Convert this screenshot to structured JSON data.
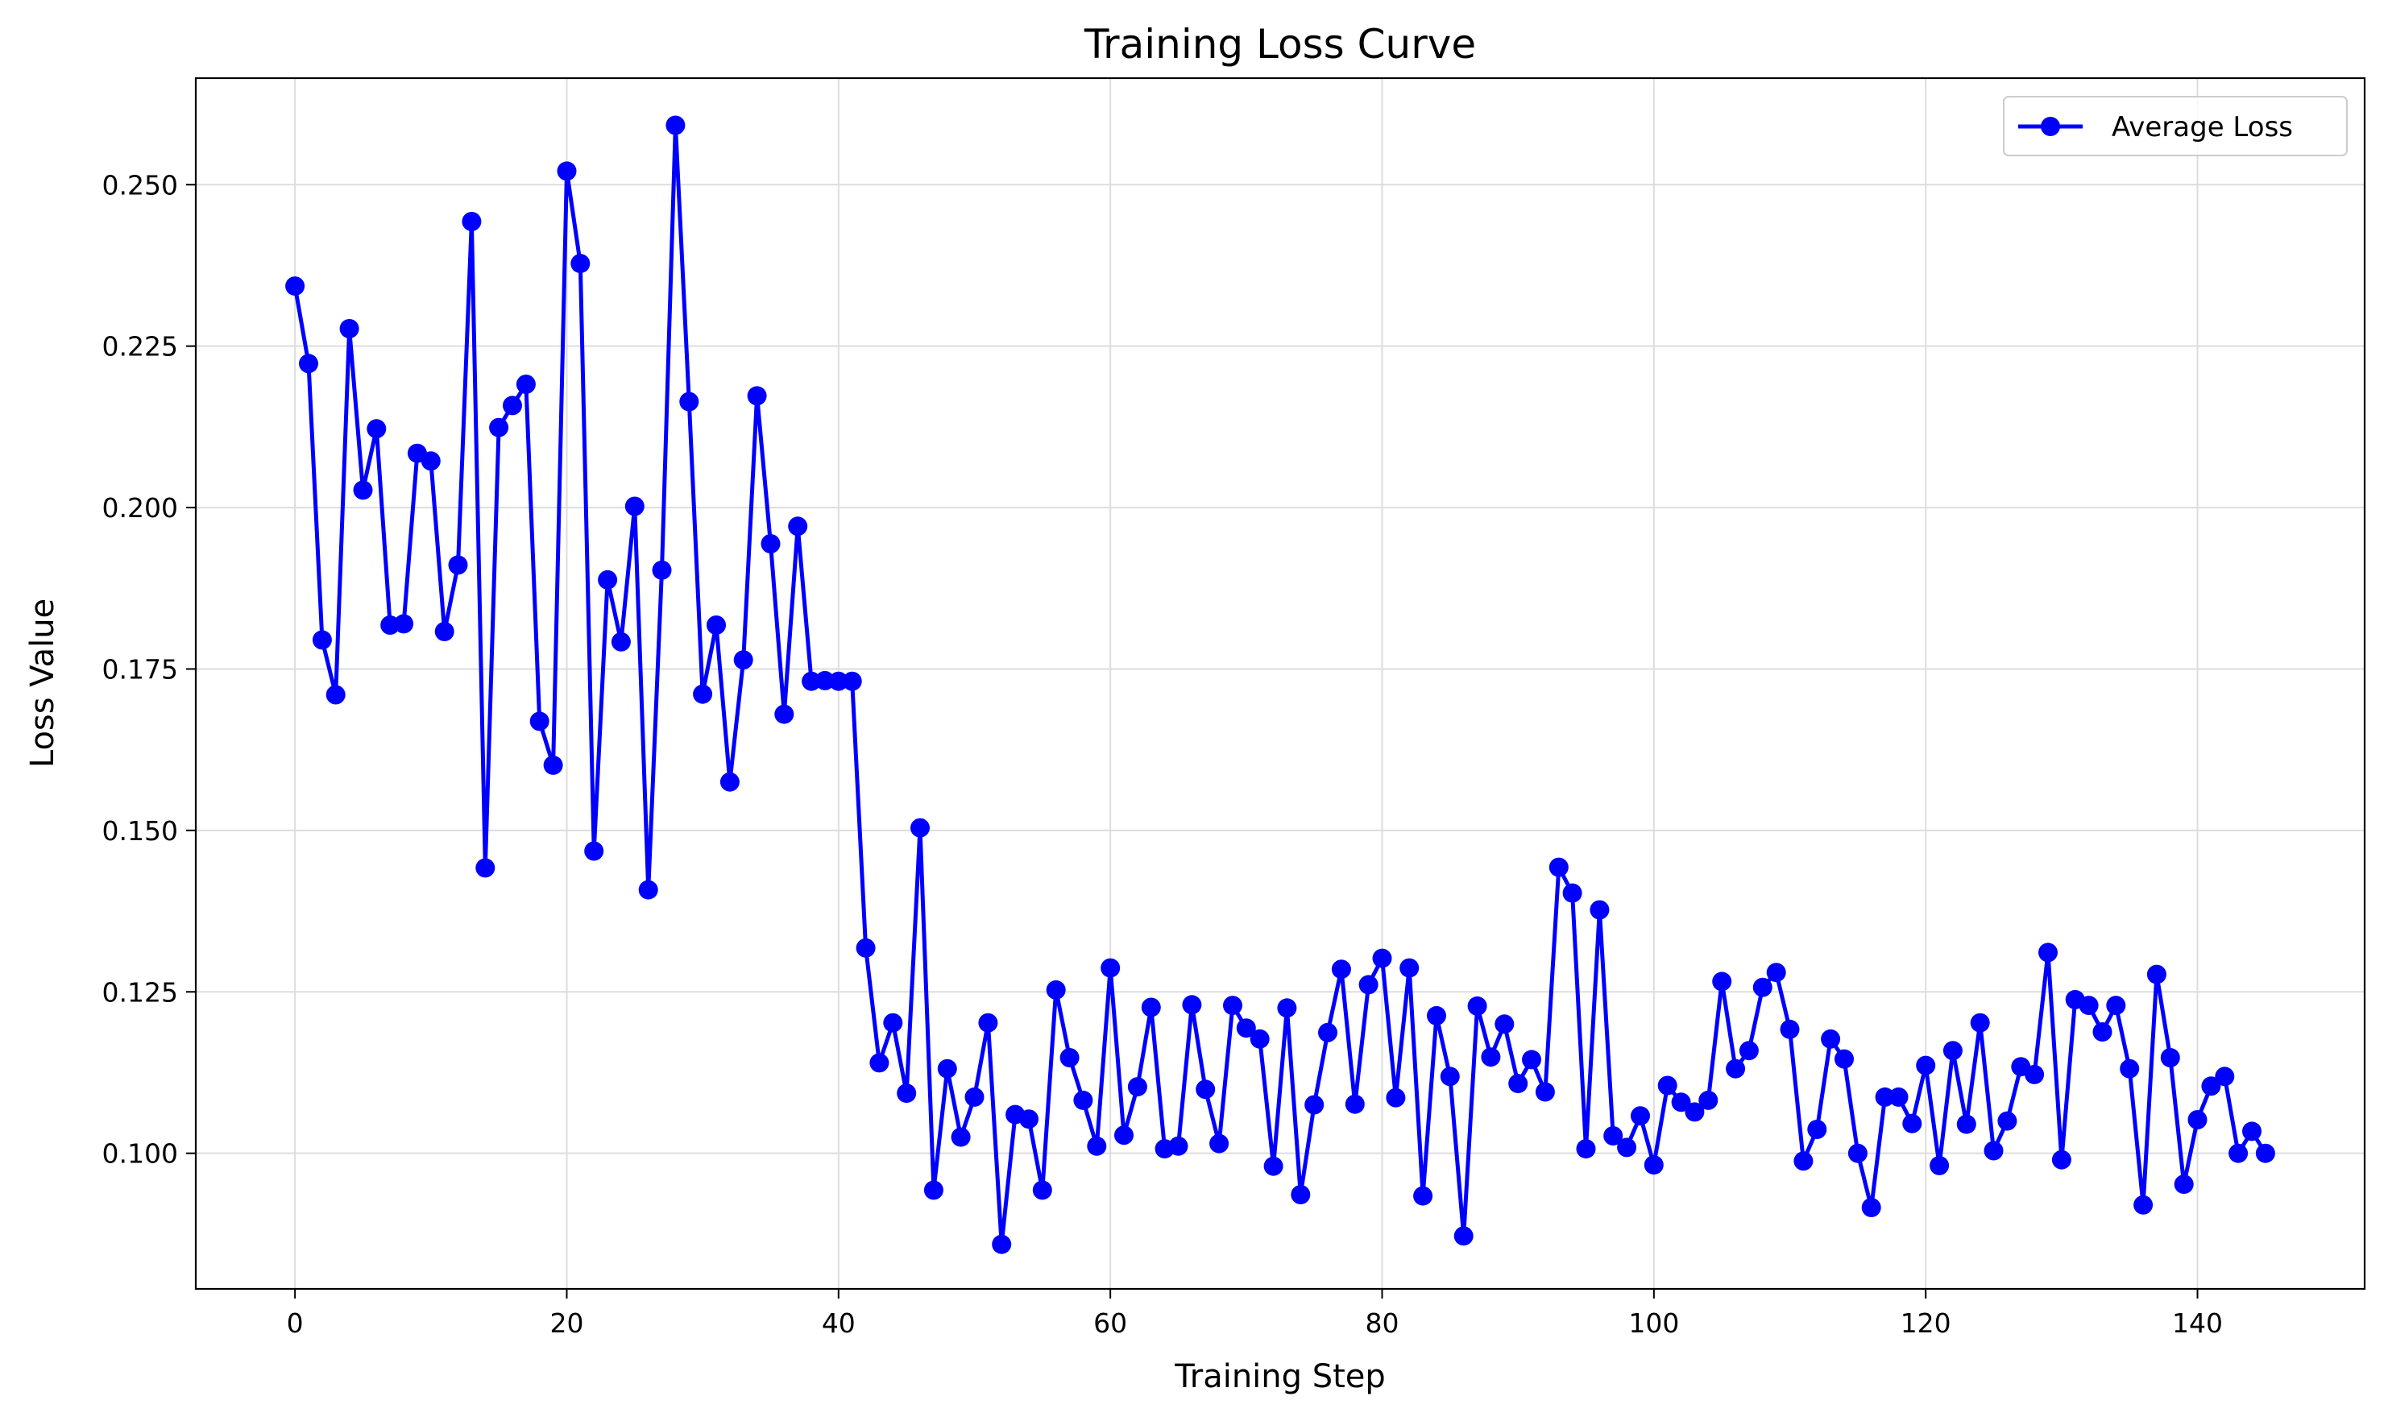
{
  "chart_data": {
    "type": "line",
    "title": "Training Loss Curve",
    "xlabel": "Training Step",
    "ylabel": "Loss Value",
    "xlim": [
      -7.3,
      152.3
    ],
    "ylim": [
      0.079,
      0.2665
    ],
    "xticks": [
      0,
      20,
      40,
      60,
      80,
      100,
      120,
      140
    ],
    "yticks": [
      0.1,
      0.125,
      0.15,
      0.175,
      0.2,
      0.225,
      0.25
    ],
    "grid": true,
    "legend_position": "top-right",
    "series": [
      {
        "name": "Average Loss",
        "color": "#0000ff",
        "marker": "circle",
        "x": [
          0,
          1,
          2,
          3,
          4,
          5,
          6,
          7,
          8,
          9,
          10,
          11,
          12,
          13,
          14,
          15,
          16,
          17,
          18,
          19,
          20,
          21,
          22,
          23,
          24,
          25,
          26,
          27,
          28,
          29,
          30,
          31,
          32,
          33,
          34,
          35,
          36,
          37,
          38,
          39,
          40,
          41,
          42,
          43,
          44,
          45,
          46,
          47,
          48,
          49,
          50,
          51,
          52,
          53,
          54,
          55,
          56,
          57,
          58,
          59,
          60,
          61,
          62,
          63,
          64,
          65,
          66,
          67,
          68,
          69,
          70,
          71,
          72,
          73,
          74,
          75,
          76,
          77,
          78,
          79,
          80,
          81,
          82,
          83,
          84,
          85,
          86,
          87,
          88,
          89,
          90,
          91,
          92,
          93,
          94,
          95,
          96,
          97,
          98,
          99,
          100,
          101,
          102,
          103,
          104,
          105,
          106,
          107,
          108,
          109,
          110,
          111,
          112,
          113,
          114,
          115,
          116,
          117,
          118,
          119,
          120,
          121,
          122,
          123,
          124,
          125,
          126,
          127,
          128,
          129,
          130,
          131,
          132,
          133,
          134,
          135,
          136,
          137,
          138,
          139,
          140,
          141,
          142,
          143,
          144,
          145
        ],
        "y": [
          0.2343,
          0.2223,
          0.1795,
          0.171,
          0.2277,
          0.2027,
          0.2122,
          0.1818,
          0.182,
          0.2084,
          0.2072,
          0.1808,
          0.1911,
          0.2443,
          0.1442,
          0.2124,
          0.2158,
          0.2191,
          0.1669,
          0.1601,
          0.2521,
          0.2378,
          0.1468,
          0.1888,
          0.1792,
          0.2002,
          0.1408,
          0.1903,
          0.2592,
          0.2164,
          0.1711,
          0.1818,
          0.1575,
          0.1764,
          0.2173,
          0.1944,
          0.168,
          0.1971,
          0.1731,
          0.1732,
          0.1731,
          0.1731,
          0.1318,
          0.114,
          0.1202,
          0.1093,
          0.1504,
          0.0943,
          0.1131,
          0.1025,
          0.1087,
          0.1202,
          0.0859,
          0.106,
          0.1053,
          0.0943,
          0.1253,
          0.1148,
          0.1082,
          0.1011,
          0.1287,
          0.1028,
          0.1103,
          0.1226,
          0.1007,
          0.1011,
          0.123,
          0.1099,
          0.1015,
          0.1229,
          0.1194,
          0.1177,
          0.098,
          0.1225,
          0.0936,
          0.1075,
          0.1187,
          0.1285,
          0.1076,
          0.1261,
          0.1302,
          0.1086,
          0.1287,
          0.0934,
          0.1213,
          0.1119,
          0.0872,
          0.1228,
          0.1149,
          0.12,
          0.1108,
          0.1145,
          0.1095,
          0.1443,
          0.1403,
          0.1007,
          0.1377,
          0.1027,
          0.1009,
          0.1058,
          0.0982,
          0.1105,
          0.1079,
          0.1064,
          0.1082,
          0.1266,
          0.1131,
          0.1159,
          0.1257,
          0.128,
          0.1192,
          0.0988,
          0.1037,
          0.1177,
          0.1146,
          0.1,
          0.0916,
          0.1087,
          0.1087,
          0.1046,
          0.1136,
          0.0981,
          0.1159,
          0.1045,
          0.1202,
          0.1004,
          0.105,
          0.1134,
          0.1122,
          0.1311,
          0.099,
          0.1238,
          0.1229,
          0.1188,
          0.1229,
          0.1131,
          0.092,
          0.1277,
          0.1148,
          0.0952,
          0.1052,
          0.1104,
          0.1119,
          0.1,
          0.1034,
          0.1
        ]
      }
    ]
  }
}
